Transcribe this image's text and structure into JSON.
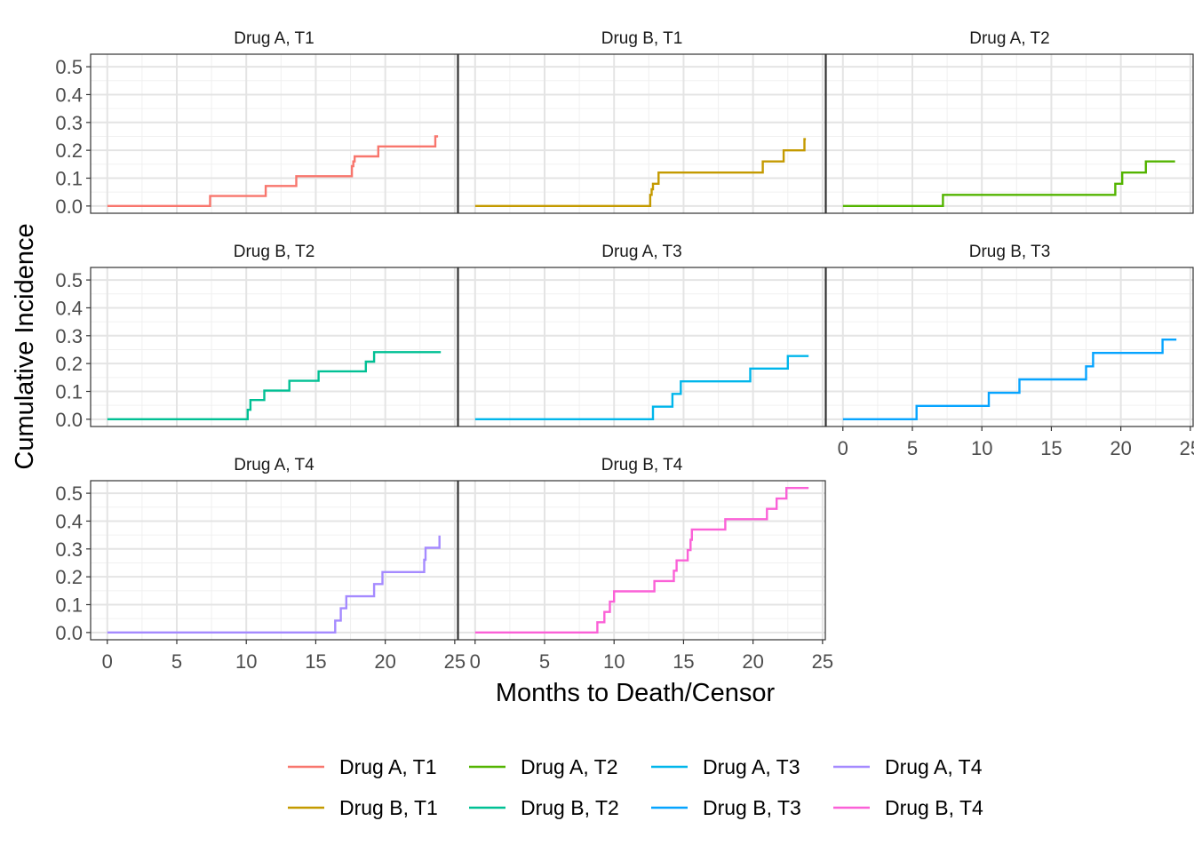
{
  "chart_data": {
    "type": "line",
    "xlabel": "Months to Death/Censor",
    "ylabel": "Cumulative Incidence",
    "xlim": [
      -1.2,
      25.2
    ],
    "ylim": [
      -0.026,
      0.545
    ],
    "x_ticks": [
      0,
      5,
      10,
      15,
      20,
      25
    ],
    "y_ticks": [
      0.0,
      0.1,
      0.2,
      0.3,
      0.4,
      0.5
    ],
    "y_tick_labels": [
      "0.0",
      "0.1",
      "0.2",
      "0.3",
      "0.4",
      "0.5"
    ],
    "x_tick_labels": [
      "0",
      "5",
      "10",
      "15",
      "20",
      "25"
    ],
    "grid": true,
    "legend_position": "bottom",
    "series": [
      {
        "name": "Drug A, T1",
        "color": "#F8766D",
        "x": [
          0,
          7.4,
          11.4,
          13.6,
          17.6,
          17.7,
          17.8,
          19.5,
          23.6,
          23.8
        ],
        "y": [
          0,
          0.036,
          0.072,
          0.107,
          0.143,
          0.16,
          0.178,
          0.214,
          0.25,
          0.25
        ]
      },
      {
        "name": "Drug B, T1",
        "color": "#C49A00",
        "x": [
          0,
          12.6,
          12.7,
          12.8,
          13.2,
          20.7,
          22.2,
          23.7,
          23.8
        ],
        "y": [
          0,
          0.04,
          0.06,
          0.08,
          0.12,
          0.16,
          0.2,
          0.24,
          0.24
        ]
      },
      {
        "name": "Drug A, T2",
        "color": "#53B400",
        "x": [
          0,
          7.2,
          19.6,
          20.1,
          21.8,
          23.9
        ],
        "y": [
          0,
          0.04,
          0.08,
          0.12,
          0.16,
          0.16
        ]
      },
      {
        "name": "Drug B, T2",
        "color": "#00C094",
        "x": [
          0,
          10.1,
          10.3,
          10.7,
          11.3,
          13.1,
          15.2,
          18.6,
          19.2,
          24.0
        ],
        "y": [
          0,
          0.034,
          0.069,
          0.069,
          0.103,
          0.138,
          0.172,
          0.207,
          0.241,
          0.241
        ]
      },
      {
        "name": "Drug A, T3",
        "color": "#00B6EB",
        "x": [
          0,
          12.8,
          14.2,
          14.8,
          19.8,
          22.5,
          24.0
        ],
        "y": [
          0,
          0.045,
          0.091,
          0.136,
          0.182,
          0.227,
          0.227
        ]
      },
      {
        "name": "Drug B, T3",
        "color": "#06A4FF",
        "x": [
          0,
          5.3,
          10.5,
          12.7,
          17.5,
          18.0,
          23.0,
          24.0
        ],
        "y": [
          0,
          0.048,
          0.095,
          0.143,
          0.19,
          0.238,
          0.286,
          0.286
        ]
      },
      {
        "name": "Drug A, T4",
        "color": "#A58AFF",
        "x": [
          0,
          16.4,
          16.8,
          17.2,
          17.6,
          19.2,
          19.8,
          22.8,
          22.9,
          23.9
        ],
        "y": [
          0,
          0.043,
          0.087,
          0.13,
          0.13,
          0.174,
          0.217,
          0.261,
          0.304,
          0.348
        ]
      },
      {
        "name": "Drug B, T4",
        "color": "#FB61D7",
        "x": [
          0,
          8.8,
          9.3,
          9.7,
          10.0,
          12.9,
          14.3,
          14.5,
          15.3,
          15.5,
          15.6,
          18.0,
          21.0,
          21.7,
          22.4,
          24.0
        ],
        "y": [
          0,
          0.037,
          0.074,
          0.111,
          0.148,
          0.185,
          0.222,
          0.259,
          0.296,
          0.333,
          0.37,
          0.407,
          0.444,
          0.481,
          0.519,
          0.519
        ]
      }
    ]
  }
}
